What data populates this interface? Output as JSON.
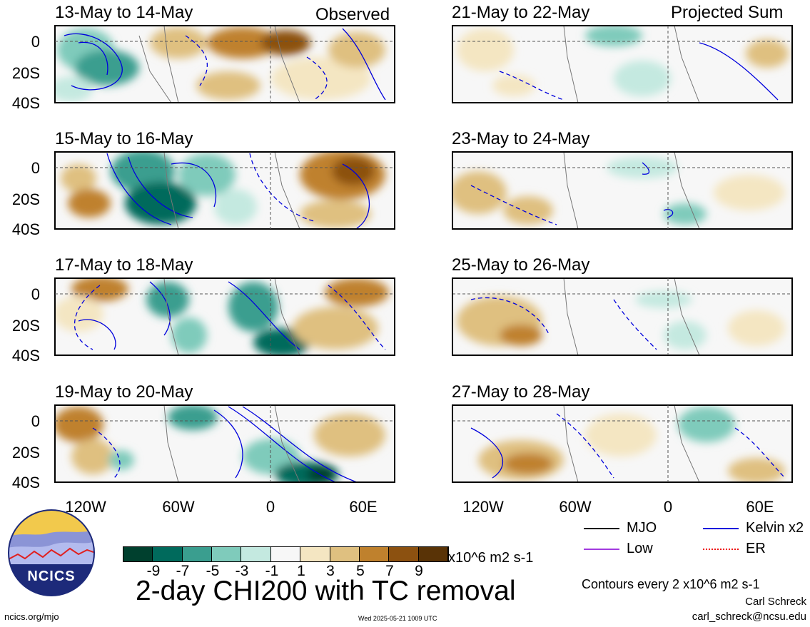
{
  "panels_left": [
    {
      "date": "13-May to 14-May"
    },
    {
      "date": "15-May to 16-May"
    },
    {
      "date": "17-May to 18-May"
    },
    {
      "date": "19-May to 20-May"
    }
  ],
  "panels_right": [
    {
      "date": "21-May to 22-May"
    },
    {
      "date": "23-May to 24-May"
    },
    {
      "date": "25-May to 26-May"
    },
    {
      "date": "27-May to 28-May"
    }
  ],
  "tags": {
    "observed": "Observed",
    "projected": "Projected Sum"
  },
  "lat_labels": [
    "0",
    "20S",
    "40S"
  ],
  "lon_labels": [
    "120W",
    "60W",
    "0",
    "60E"
  ],
  "colorbar": {
    "labels": [
      "-9",
      "-7",
      "-5",
      "-3",
      "-1",
      "1",
      "3",
      "5",
      "7",
      "9"
    ],
    "units": "x10^6 m2 s-1",
    "colors": [
      "#00402e",
      "#006a5c",
      "#3a9e8f",
      "#7fcbbb",
      "#c4e9e0",
      "#f7f7f7",
      "#f4e6c2",
      "#dfc080",
      "#bf812d",
      "#8c5110",
      "#593306"
    ]
  },
  "legend": {
    "items": [
      {
        "label": "MJO",
        "color": "#000000"
      },
      {
        "label": "Kelvin x2",
        "color": "#0000dd"
      },
      {
        "label": "Low",
        "color": "#a23adf"
      },
      {
        "label": "ER",
        "color": "#ee1111"
      }
    ],
    "contours_note": "Contours every 2 x10^6 m2 s-1"
  },
  "footer": {
    "main_title": "2-day CHI200 with TC removal",
    "logo_text": "NCICS",
    "url": "ncics.org/mjo",
    "timestamp": "Wed 2025-05-21 1009 UTC",
    "author": "Carl Schreck",
    "email": "carl_schreck@ncsu.edu"
  }
}
